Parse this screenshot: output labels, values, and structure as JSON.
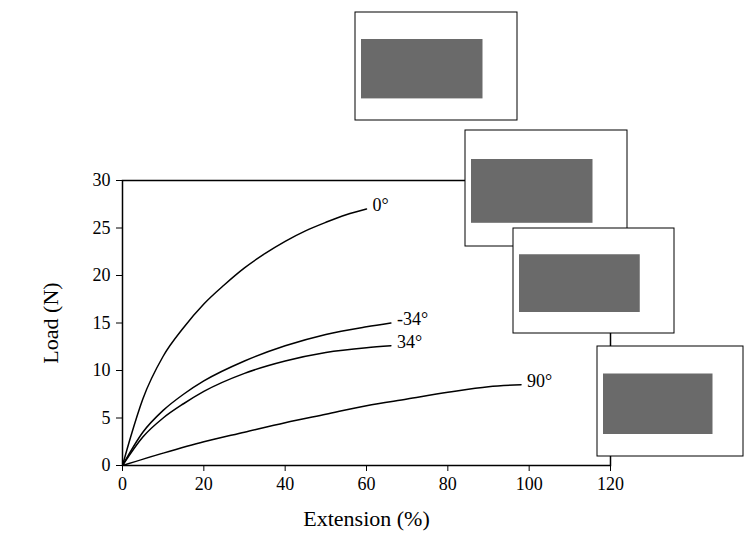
{
  "chart_data": {
    "type": "line",
    "x_label": "Extension (%)",
    "y_label": "Load (N)",
    "xlim": [
      0,
      120
    ],
    "xticks": [
      0,
      20,
      40,
      60,
      80,
      100,
      120
    ],
    "ylim": [
      0,
      30
    ],
    "yticks": [
      0,
      5,
      10,
      15,
      20,
      25,
      30
    ],
    "grid": false,
    "series": [
      {
        "name": "0°",
        "color": "#000000",
        "x": [
          0,
          2,
          5,
          10,
          15,
          20,
          25,
          30,
          35,
          40,
          45,
          50,
          55,
          60
        ],
        "values": [
          0,
          3,
          7,
          11.5,
          14.5,
          17,
          19,
          20.8,
          22.3,
          23.6,
          24.7,
          25.6,
          26.4,
          27
        ]
      },
      {
        "name": "-34°",
        "color": "#000000",
        "x": [
          0,
          5,
          10,
          15,
          20,
          30,
          40,
          50,
          60,
          66
        ],
        "values": [
          0,
          3.5,
          5.8,
          7.5,
          8.9,
          11,
          12.6,
          13.8,
          14.6,
          15
        ]
      },
      {
        "name": "34°",
        "color": "#000000",
        "x": [
          0,
          5,
          10,
          15,
          20,
          30,
          40,
          50,
          60,
          66
        ],
        "values": [
          0,
          3,
          5,
          6.5,
          7.8,
          9.7,
          11,
          11.9,
          12.4,
          12.6
        ]
      },
      {
        "name": "90°",
        "color": "#000000",
        "x": [
          0,
          10,
          20,
          30,
          40,
          50,
          60,
          70,
          80,
          90,
          98
        ],
        "values": [
          0,
          1.3,
          2.5,
          3.5,
          4.5,
          5.4,
          6.3,
          7,
          7.7,
          8.3,
          8.5
        ]
      }
    ]
  }
}
